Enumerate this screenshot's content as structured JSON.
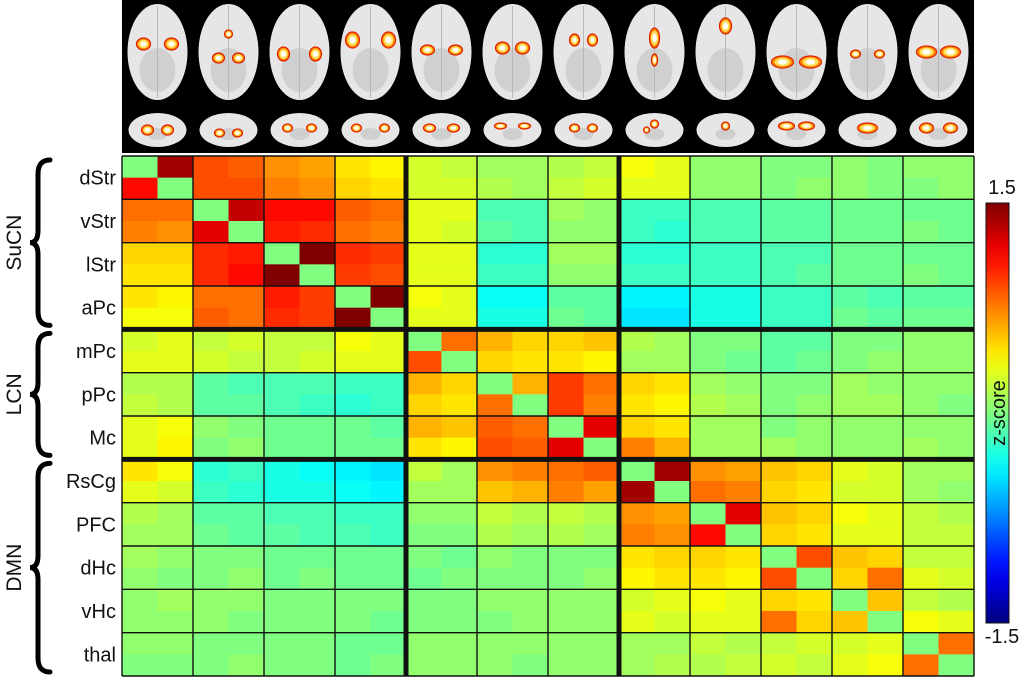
{
  "chart_data": {
    "type": "heatmap",
    "colorbar": {
      "label": "z-score",
      "max_label": "1.5",
      "min_label": "-1.5",
      "range": [
        -1.5,
        1.5
      ],
      "colormap": "jet"
    },
    "groups": [
      {
        "label": "SuCN",
        "rows": [
          "dStr",
          "vStr",
          "lStr",
          "aPc"
        ]
      },
      {
        "label": "LCN",
        "rows": [
          "mPc",
          "pPc",
          "Mc"
        ]
      },
      {
        "label": "DMN",
        "rows": [
          "RsCg",
          "PFC",
          "dHc",
          "vHc",
          "thal"
        ]
      }
    ],
    "regions": [
      "dStr",
      "vStr",
      "lStr",
      "aPc",
      "mPc",
      "pPc",
      "Mc",
      "RsCg",
      "PFC",
      "dHc",
      "vHc",
      "thal"
    ],
    "subcells": [
      [
        0.0,
        1.4,
        0.9,
        0.85,
        0.7,
        0.65,
        0.45,
        0.4,
        0.25,
        0.2,
        0.1,
        0.1,
        0.15,
        0.2,
        0.35,
        0.3,
        0.05,
        0.05,
        0.0,
        0.0,
        0.05,
        0.0,
        0.05,
        0.05
      ],
      [
        1.1,
        0.0,
        0.9,
        0.9,
        0.75,
        0.7,
        0.5,
        0.45,
        0.25,
        0.25,
        0.15,
        0.1,
        0.2,
        0.25,
        0.3,
        0.3,
        0.05,
        0.05,
        0.0,
        0.05,
        0.05,
        0.0,
        0.0,
        0.05
      ],
      [
        0.8,
        0.8,
        0.0,
        1.3,
        1.1,
        1.1,
        0.85,
        0.8,
        0.3,
        0.3,
        -0.15,
        -0.15,
        0.1,
        0.05,
        -0.2,
        -0.2,
        -0.15,
        -0.15,
        -0.1,
        -0.1,
        -0.05,
        -0.05,
        -0.05,
        -0.05
      ],
      [
        0.75,
        0.7,
        1.2,
        0.0,
        1.05,
        1.0,
        0.8,
        0.75,
        0.3,
        0.25,
        -0.1,
        -0.15,
        0.05,
        0.05,
        -0.2,
        -0.25,
        -0.15,
        -0.15,
        -0.1,
        -0.1,
        -0.05,
        -0.05,
        0.0,
        -0.05
      ],
      [
        0.5,
        0.5,
        1.0,
        1.05,
        0.0,
        1.5,
        1.0,
        0.95,
        0.3,
        0.3,
        -0.25,
        -0.25,
        0.1,
        0.1,
        -0.25,
        -0.25,
        -0.2,
        -0.2,
        -0.15,
        -0.15,
        -0.05,
        -0.05,
        -0.05,
        -0.05
      ],
      [
        0.45,
        0.45,
        1.0,
        1.1,
        1.5,
        0.0,
        0.95,
        0.9,
        0.3,
        0.3,
        -0.2,
        -0.2,
        0.05,
        0.05,
        -0.2,
        -0.2,
        -0.2,
        -0.2,
        -0.15,
        -0.1,
        -0.05,
        -0.05,
        0.0,
        -0.05
      ],
      [
        0.45,
        0.4,
        0.8,
        0.8,
        1.05,
        0.95,
        0.0,
        1.5,
        0.35,
        0.3,
        -0.35,
        -0.35,
        -0.1,
        -0.1,
        -0.4,
        -0.4,
        -0.3,
        -0.3,
        -0.2,
        -0.2,
        -0.1,
        -0.15,
        -0.1,
        -0.1
      ],
      [
        0.35,
        0.35,
        0.85,
        0.8,
        1.0,
        0.95,
        1.5,
        0.0,
        0.3,
        0.3,
        -0.3,
        -0.3,
        -0.05,
        -0.1,
        -0.45,
        -0.45,
        -0.3,
        -0.3,
        -0.2,
        -0.2,
        -0.05,
        -0.1,
        -0.05,
        -0.05
      ],
      [
        0.25,
        0.3,
        0.2,
        0.25,
        0.2,
        0.2,
        0.35,
        0.3,
        0.0,
        0.8,
        0.6,
        0.5,
        0.5,
        0.55,
        0.15,
        0.1,
        0.0,
        0.0,
        -0.1,
        -0.1,
        0.0,
        0.0,
        0.05,
        0.05
      ],
      [
        0.3,
        0.3,
        0.25,
        0.2,
        0.2,
        0.25,
        0.3,
        0.3,
        0.9,
        0.0,
        0.5,
        0.45,
        0.45,
        0.4,
        0.1,
        0.1,
        0.0,
        -0.05,
        -0.1,
        -0.05,
        0.0,
        0.05,
        0.05,
        0.05
      ],
      [
        0.15,
        0.15,
        -0.1,
        -0.15,
        -0.15,
        -0.15,
        -0.2,
        -0.2,
        0.6,
        0.5,
        0.0,
        0.6,
        0.95,
        0.8,
        0.5,
        0.45,
        0.1,
        0.05,
        0.0,
        0.0,
        0.1,
        0.05,
        0.05,
        0.05
      ],
      [
        0.2,
        0.15,
        -0.1,
        -0.1,
        -0.15,
        -0.2,
        -0.25,
        -0.2,
        0.5,
        0.45,
        0.8,
        0.0,
        0.95,
        0.75,
        0.45,
        0.4,
        0.15,
        0.1,
        0.0,
        0.05,
        0.1,
        0.1,
        0.05,
        0.0
      ],
      [
        0.3,
        0.35,
        0.05,
        0.0,
        -0.05,
        -0.05,
        -0.05,
        -0.1,
        0.6,
        0.55,
        0.85,
        0.8,
        0.0,
        1.2,
        0.5,
        0.45,
        0.1,
        0.1,
        0.0,
        0.05,
        0.05,
        0.05,
        0.05,
        0.05
      ],
      [
        0.3,
        0.4,
        0.0,
        0.05,
        -0.05,
        -0.05,
        -0.05,
        -0.05,
        0.45,
        0.4,
        0.9,
        0.85,
        1.2,
        0.0,
        0.75,
        0.6,
        0.1,
        0.1,
        0.1,
        0.05,
        0.05,
        0.05,
        0.1,
        0.05
      ],
      [
        0.45,
        0.35,
        -0.25,
        -0.2,
        -0.3,
        -0.35,
        -0.4,
        -0.45,
        0.2,
        0.1,
        0.7,
        0.75,
        0.8,
        0.85,
        0.0,
        1.4,
        0.7,
        0.65,
        0.55,
        0.5,
        0.3,
        0.25,
        0.1,
        0.1
      ],
      [
        0.3,
        0.25,
        -0.2,
        -0.25,
        -0.3,
        -0.3,
        -0.35,
        -0.4,
        0.1,
        0.1,
        0.55,
        0.6,
        0.75,
        0.65,
        1.4,
        0.0,
        0.8,
        0.75,
        0.5,
        0.45,
        0.25,
        0.25,
        0.1,
        0.05
      ],
      [
        0.15,
        0.1,
        -0.1,
        -0.1,
        -0.15,
        -0.15,
        -0.2,
        -0.2,
        0.05,
        0.05,
        0.2,
        0.15,
        0.2,
        0.15,
        0.7,
        0.65,
        0.0,
        1.2,
        0.55,
        0.5,
        0.35,
        0.3,
        0.2,
        0.15
      ],
      [
        0.1,
        0.1,
        -0.05,
        -0.1,
        -0.1,
        -0.15,
        -0.15,
        -0.2,
        0.0,
        0.0,
        0.15,
        0.1,
        0.15,
        0.1,
        0.75,
        0.7,
        1.1,
        0.0,
        0.5,
        0.45,
        0.3,
        0.3,
        0.2,
        0.2
      ],
      [
        0.1,
        0.05,
        0.0,
        0.0,
        -0.05,
        -0.05,
        -0.05,
        -0.05,
        0.0,
        -0.05,
        0.05,
        0.0,
        0.0,
        0.0,
        0.45,
        0.5,
        0.5,
        0.45,
        0.0,
        0.9,
        0.55,
        0.5,
        0.2,
        0.2
      ],
      [
        0.05,
        0.0,
        0.0,
        0.05,
        -0.05,
        0.0,
        -0.05,
        -0.05,
        -0.05,
        0.0,
        0.0,
        0.0,
        0.0,
        0.05,
        0.4,
        0.45,
        0.45,
        0.4,
        0.9,
        0.0,
        0.5,
        0.8,
        0.3,
        0.25
      ],
      [
        0.05,
        0.1,
        0.05,
        0.05,
        0.0,
        0.0,
        0.0,
        0.0,
        0.0,
        0.0,
        0.05,
        0.05,
        0.05,
        0.05,
        0.25,
        0.3,
        0.35,
        0.3,
        0.5,
        0.45,
        0.0,
        0.55,
        0.2,
        0.15
      ],
      [
        0.05,
        0.05,
        0.05,
        0.0,
        0.0,
        0.0,
        0.0,
        -0.05,
        0.0,
        0.0,
        0.0,
        0.05,
        0.05,
        0.05,
        0.3,
        0.25,
        0.3,
        0.3,
        0.8,
        0.5,
        0.55,
        0.0,
        0.35,
        0.3
      ],
      [
        0.05,
        0.05,
        0.0,
        0.0,
        0.0,
        0.0,
        -0.05,
        -0.05,
        0.05,
        0.05,
        0.05,
        0.05,
        0.05,
        0.05,
        0.1,
        0.1,
        0.2,
        0.15,
        0.2,
        0.25,
        0.25,
        0.3,
        0.0,
        0.8
      ],
      [
        0.0,
        0.0,
        0.0,
        0.05,
        0.0,
        0.0,
        -0.05,
        0.0,
        0.05,
        0.05,
        0.05,
        0.0,
        0.05,
        0.05,
        0.1,
        0.15,
        0.15,
        0.2,
        0.25,
        0.2,
        0.3,
        0.35,
        0.8,
        0.0
      ]
    ]
  },
  "brain_images": {
    "axial": [
      "dStr",
      "vStr",
      "lStr",
      "aPc",
      "mPc",
      "pPc",
      "Mc",
      "RsCg",
      "PFC",
      "dHc",
      "vHc",
      "thal"
    ],
    "coronal": [
      "dStr",
      "vStr",
      "lStr",
      "aPc",
      "mPc",
      "pPc",
      "Mc",
      "RsCg",
      "PFC",
      "dHc",
      "vHc",
      "thal"
    ],
    "activation_colors": [
      "#ffffff",
      "#ffe060",
      "#ff8a00",
      "#e02000",
      "#8a0000"
    ],
    "brain_fill": "#e6e6e6"
  }
}
